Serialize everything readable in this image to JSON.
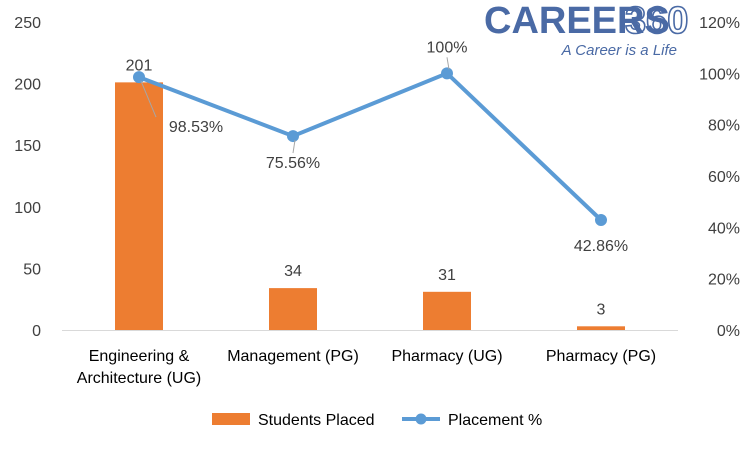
{
  "logo": {
    "word": "CAREERS",
    "number": "360",
    "tagline": "A Career is a Life",
    "color": "#4a6aa5"
  },
  "chart_data": {
    "type": "bar+line",
    "categories": [
      [
        "Engineering &",
        "Architecture (UG)"
      ],
      [
        "Management (PG)"
      ],
      [
        "Pharmacy (UG)"
      ],
      [
        "Pharmacy (PG)"
      ]
    ],
    "series": [
      {
        "name": "Students Placed",
        "kind": "bar",
        "axis": "left",
        "values": [
          201,
          34,
          31,
          3
        ],
        "labels": [
          "201",
          "34",
          "31",
          "3"
        ],
        "color": "#ed7d31"
      },
      {
        "name": "Placement %",
        "kind": "line",
        "axis": "right",
        "values": [
          98.53,
          75.56,
          100,
          42.86
        ],
        "labels": [
          "98.53%",
          "75.56%",
          "100%",
          "42.86%"
        ],
        "color": "#5b9bd5"
      }
    ],
    "y_left": {
      "min": 0,
      "max": 250,
      "ticks": [
        "0",
        "50",
        "100",
        "150",
        "200",
        "250"
      ]
    },
    "y_right": {
      "min": 0,
      "max": 120,
      "ticks": [
        "0%",
        "20%",
        "40%",
        "60%",
        "80%",
        "100%",
        "120%"
      ]
    },
    "grid": false,
    "legend": "bottom"
  }
}
